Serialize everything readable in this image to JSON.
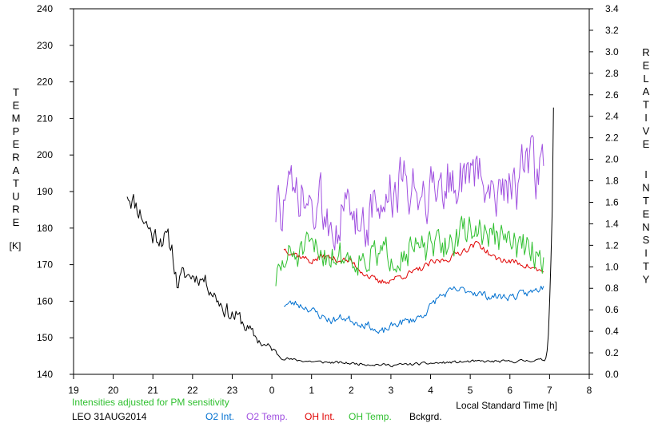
{
  "chart_data": {
    "type": "line",
    "left_axis": {
      "label_letters": [
        "T",
        "E",
        "M",
        "P",
        "E",
        "R",
        "A",
        "T",
        "U",
        "R",
        "E"
      ],
      "unit": "[K]",
      "min": 140,
      "max": 240,
      "ticks": [
        140,
        150,
        160,
        170,
        180,
        190,
        200,
        210,
        220,
        230,
        240
      ],
      "tick_labels": [
        "140",
        "150",
        "160",
        "170",
        "180",
        "190",
        "200",
        "210",
        "220",
        "230",
        "240"
      ]
    },
    "right_axis": {
      "label_words": [
        [
          "R",
          "E",
          "L",
          "A",
          "T",
          "I",
          "V",
          "E"
        ],
        [
          "I",
          "N",
          "T",
          "E",
          "N",
          "S",
          "I",
          "T",
          "Y"
        ]
      ],
      "min": 0.0,
      "max": 3.4,
      "ticks": [
        0,
        0.2,
        0.4,
        0.6,
        0.8,
        1.0,
        1.2,
        1.4,
        1.6,
        1.8,
        2.0,
        2.2,
        2.4,
        2.6,
        2.8,
        3.0,
        3.2,
        3.4
      ],
      "tick_labels": [
        "0.0",
        "0.2",
        "0.4",
        "0.6",
        "0.8",
        "1.0",
        "1.2",
        "1.4",
        "1.6",
        "1.8",
        "2.0",
        "2.2",
        "2.4",
        "2.6",
        "2.8",
        "3.0",
        "3.2",
        "3.4"
      ]
    },
    "x_axis": {
      "label": "Local Standard Time [h]",
      "min": 19,
      "max": 32,
      "ticks": [
        19,
        20,
        21,
        22,
        23,
        24,
        25,
        26,
        27,
        28,
        29,
        30,
        31,
        32
      ],
      "tick_labels": [
        "19",
        "20",
        "21",
        "22",
        "23",
        "0",
        "1",
        "2",
        "3",
        "4",
        "5",
        "6",
        "7",
        "8"
      ]
    },
    "note": "Intensities adjusted for PM sensitivity",
    "station": "LEO 31AUG2014",
    "legend": [
      {
        "key": "o2_int",
        "label": "O2 Int.",
        "color": "#0070d0"
      },
      {
        "key": "o2_temp",
        "label": "O2 Temp.",
        "color": "#a050e0"
      },
      {
        "key": "oh_int",
        "label": "OH Int.",
        "color": "#e00000"
      },
      {
        "key": "oh_temp",
        "label": "OH Temp.",
        "color": "#30c030"
      },
      {
        "key": "bckgrd",
        "label": "Bckgrd.",
        "color": "#000000"
      }
    ],
    "series": [
      {
        "key": "bckgrd",
        "axis": "left",
        "color": "#000000",
        "seed": 11,
        "anchors": [
          [
            20.35,
            190
          ],
          [
            20.6,
            186
          ],
          [
            20.8,
            182
          ],
          [
            21.0,
            178
          ],
          [
            21.2,
            178
          ],
          [
            21.4,
            176
          ],
          [
            21.5,
            174
          ],
          [
            21.6,
            165
          ],
          [
            21.8,
            167
          ],
          [
            22.0,
            167
          ],
          [
            22.3,
            166
          ],
          [
            22.6,
            161
          ],
          [
            22.9,
            157
          ],
          [
            23.2,
            155
          ],
          [
            23.5,
            151
          ],
          [
            23.8,
            148
          ],
          [
            24.0,
            147
          ],
          [
            24.2,
            145
          ],
          [
            24.5,
            144
          ],
          [
            25.0,
            143.5
          ],
          [
            26.0,
            143
          ],
          [
            27.0,
            142.5
          ],
          [
            28.0,
            143
          ],
          [
            29.0,
            143.5
          ],
          [
            30.0,
            143.5
          ],
          [
            30.9,
            144
          ],
          [
            30.96,
            148
          ],
          [
            31.02,
            165
          ],
          [
            31.08,
            190
          ],
          [
            31.1,
            213
          ]
        ],
        "noise": [
          [
            20.35,
            5
          ],
          [
            21.6,
            5
          ],
          [
            22.0,
            3
          ],
          [
            23.0,
            4
          ],
          [
            24.0,
            1.5
          ],
          [
            24.4,
            0.6
          ],
          [
            30.9,
            0.6
          ],
          [
            31.0,
            0
          ]
        ]
      },
      {
        "key": "o2_int",
        "axis": "right",
        "color": "#0070d0",
        "seed": 23,
        "anchors": [
          [
            24.3,
            0.65
          ],
          [
            24.6,
            0.66
          ],
          [
            24.9,
            0.62
          ],
          [
            25.2,
            0.55
          ],
          [
            25.5,
            0.5
          ],
          [
            25.8,
            0.53
          ],
          [
            26.2,
            0.48
          ],
          [
            26.5,
            0.45
          ],
          [
            26.7,
            0.37
          ],
          [
            26.9,
            0.42
          ],
          [
            27.2,
            0.48
          ],
          [
            27.5,
            0.5
          ],
          [
            27.8,
            0.55
          ],
          [
            28.0,
            0.63
          ],
          [
            28.2,
            0.72
          ],
          [
            28.6,
            0.78
          ],
          [
            29.0,
            0.78
          ],
          [
            29.4,
            0.73
          ],
          [
            29.8,
            0.72
          ],
          [
            30.2,
            0.73
          ],
          [
            30.6,
            0.77
          ],
          [
            30.85,
            0.82
          ]
        ],
        "noise": [
          [
            24.3,
            0.06
          ]
        ]
      },
      {
        "key": "oh_int",
        "axis": "right",
        "color": "#e00000",
        "seed": 37,
        "anchors": [
          [
            24.3,
            1.17
          ],
          [
            24.6,
            1.12
          ],
          [
            25.0,
            1.05
          ],
          [
            25.3,
            1.1
          ],
          [
            25.6,
            1.07
          ],
          [
            26.0,
            1.05
          ],
          [
            26.3,
            0.95
          ],
          [
            26.7,
            0.85
          ],
          [
            27.0,
            0.88
          ],
          [
            27.3,
            0.92
          ],
          [
            27.6,
            0.95
          ],
          [
            28.0,
            1.03
          ],
          [
            28.4,
            1.07
          ],
          [
            28.8,
            1.15
          ],
          [
            29.2,
            1.22
          ],
          [
            29.6,
            1.08
          ],
          [
            30.0,
            1.05
          ],
          [
            30.4,
            1.02
          ],
          [
            30.6,
            0.98
          ],
          [
            30.85,
            0.95
          ]
        ],
        "noise": [
          [
            24.3,
            0.05
          ]
        ]
      },
      {
        "key": "oh_temp",
        "axis": "left",
        "color": "#30c030",
        "seed": 51,
        "anchors": [
          [
            24.1,
            166
          ],
          [
            24.4,
            172
          ],
          [
            25.0,
            174
          ],
          [
            25.5,
            173
          ],
          [
            26.0,
            172
          ],
          [
            26.5,
            172
          ],
          [
            27.0,
            173
          ],
          [
            27.5,
            174
          ],
          [
            28.0,
            174
          ],
          [
            28.5,
            176
          ],
          [
            29.0,
            180
          ],
          [
            29.5,
            178
          ],
          [
            30.0,
            176
          ],
          [
            30.5,
            174
          ],
          [
            30.85,
            172
          ]
        ],
        "noise": [
          [
            24.1,
            7
          ]
        ]
      },
      {
        "key": "o2_temp",
        "axis": "left",
        "color": "#a050e0",
        "seed": 73,
        "anchors": [
          [
            24.1,
            185
          ],
          [
            24.5,
            188
          ],
          [
            25.0,
            185
          ],
          [
            25.5,
            184
          ],
          [
            26.0,
            183
          ],
          [
            26.5,
            184
          ],
          [
            27.0,
            189
          ],
          [
            27.5,
            192
          ],
          [
            28.0,
            191
          ],
          [
            28.5,
            193
          ],
          [
            29.0,
            194
          ],
          [
            29.5,
            193
          ],
          [
            30.0,
            192
          ],
          [
            30.5,
            195
          ],
          [
            30.85,
            197
          ]
        ],
        "noise": [
          [
            24.1,
            13
          ]
        ]
      }
    ]
  }
}
